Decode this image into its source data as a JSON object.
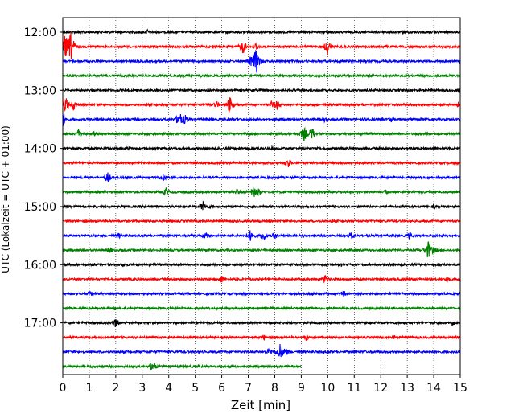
{
  "chart_data": {
    "type": "line",
    "subtype": "helicorder",
    "title": "",
    "xlabel": "Zeit  [min]",
    "ylabel": "UTC (Lokalzeit = UTC + 01:00)",
    "xlim": [
      0,
      15
    ],
    "x_ticks": [
      0,
      1,
      2,
      3,
      4,
      5,
      6,
      7,
      8,
      9,
      10,
      11,
      12,
      13,
      14,
      15
    ],
    "x_grid": "dotted vertical lines at each minute",
    "trace_interval_min": 15,
    "colors": [
      "#000000",
      "#ff0000",
      "#0000ff",
      "#008000"
    ],
    "y_ticks": [
      {
        "label": "12:00",
        "trace": 0
      },
      {
        "label": "13:00",
        "trace": 4
      },
      {
        "label": "14:00",
        "trace": 8
      },
      {
        "label": "15:00",
        "trace": 12
      },
      {
        "label": "16:00",
        "trace": 16
      },
      {
        "label": "17:00",
        "trace": 20
      }
    ],
    "series": [
      {
        "start": "12:00",
        "end_min": 15,
        "events": [
          [
            3.2,
            4
          ],
          [
            12.8,
            3
          ]
        ]
      },
      {
        "start": "12:15",
        "end_min": 15,
        "events": [
          [
            0.1,
            18
          ],
          [
            0.3,
            20
          ],
          [
            6.8,
            10
          ],
          [
            7.3,
            6
          ],
          [
            10.0,
            11
          ]
        ]
      },
      {
        "start": "12:30",
        "end_min": 15,
        "events": [
          [
            7.3,
            18
          ],
          [
            7.1,
            8
          ]
        ]
      },
      {
        "start": "12:45",
        "end_min": 15,
        "events": [
          [
            13.6,
            3
          ]
        ]
      },
      {
        "start": "13:00",
        "end_min": 15,
        "events": [
          [
            15.0,
            6
          ]
        ]
      },
      {
        "start": "13:15",
        "end_min": 15,
        "events": [
          [
            0.1,
            12
          ],
          [
            0.4,
            8
          ],
          [
            5.8,
            5
          ],
          [
            6.3,
            11
          ],
          [
            7.9,
            6
          ],
          [
            8.1,
            7
          ],
          [
            14.9,
            5
          ]
        ]
      },
      {
        "start": "13:30",
        "end_min": 15,
        "events": [
          [
            0.0,
            10
          ],
          [
            4.4,
            11
          ],
          [
            4.6,
            7
          ],
          [
            9.9,
            4
          ],
          [
            11.5,
            4
          ],
          [
            12.4,
            4
          ]
        ]
      },
      {
        "start": "13:45",
        "end_min": 15,
        "events": [
          [
            0.6,
            7
          ],
          [
            1.2,
            4
          ],
          [
            9.1,
            10
          ],
          [
            9.4,
            9
          ]
        ]
      },
      {
        "start": "14:00",
        "end_min": 15,
        "events": [
          [
            2.5,
            3
          ],
          [
            7.9,
            3
          ]
        ]
      },
      {
        "start": "14:15",
        "end_min": 15,
        "events": [
          [
            8.5,
            7
          ]
        ]
      },
      {
        "start": "14:30",
        "end_min": 15,
        "events": [
          [
            1.7,
            7
          ],
          [
            2.5,
            3
          ],
          [
            3.8,
            7
          ]
        ]
      },
      {
        "start": "14:45",
        "end_min": 15,
        "events": [
          [
            3.9,
            6
          ],
          [
            6.6,
            4
          ],
          [
            7.2,
            8
          ],
          [
            7.4,
            6
          ],
          [
            12.2,
            4
          ]
        ]
      },
      {
        "start": "15:00",
        "end_min": 15,
        "events": [
          [
            5.3,
            7
          ],
          [
            5.6,
            4
          ],
          [
            14.0,
            3
          ]
        ]
      },
      {
        "start": "15:15",
        "end_min": 15,
        "events": []
      },
      {
        "start": "15:30",
        "end_min": 15,
        "events": [
          [
            2.1,
            4
          ],
          [
            5.4,
            6
          ],
          [
            7.1,
            9
          ],
          [
            7.6,
            7
          ],
          [
            8.0,
            5
          ],
          [
            10.9,
            5
          ],
          [
            13.1,
            5
          ]
        ]
      },
      {
        "start": "15:45",
        "end_min": 15,
        "events": [
          [
            1.8,
            5
          ],
          [
            13.8,
            13
          ],
          [
            14.0,
            6
          ]
        ]
      },
      {
        "start": "16:00",
        "end_min": 15,
        "events": [
          [
            2.3,
            3
          ]
        ]
      },
      {
        "start": "16:15",
        "end_min": 15,
        "events": [
          [
            6.0,
            6
          ],
          [
            9.9,
            7
          ],
          [
            14.5,
            4
          ]
        ]
      },
      {
        "start": "16:30",
        "end_min": 15,
        "events": [
          [
            1.0,
            5
          ],
          [
            10.6,
            4
          ]
        ]
      },
      {
        "start": "16:45",
        "end_min": 15,
        "events": [
          [
            2.0,
            4
          ]
        ]
      },
      {
        "start": "17:00",
        "end_min": 15,
        "events": [
          [
            2.0,
            7
          ],
          [
            14.7,
            4
          ]
        ]
      },
      {
        "start": "17:15",
        "end_min": 15,
        "events": [
          [
            7.6,
            4
          ],
          [
            9.2,
            5
          ],
          [
            12.5,
            3
          ]
        ]
      },
      {
        "start": "17:30",
        "end_min": 15,
        "events": [
          [
            7.8,
            6
          ],
          [
            8.2,
            11
          ],
          [
            8.4,
            7
          ]
        ]
      },
      {
        "start": "17:45",
        "end_min": 9.0,
        "events": [
          [
            3.4,
            8
          ]
        ]
      }
    ]
  }
}
